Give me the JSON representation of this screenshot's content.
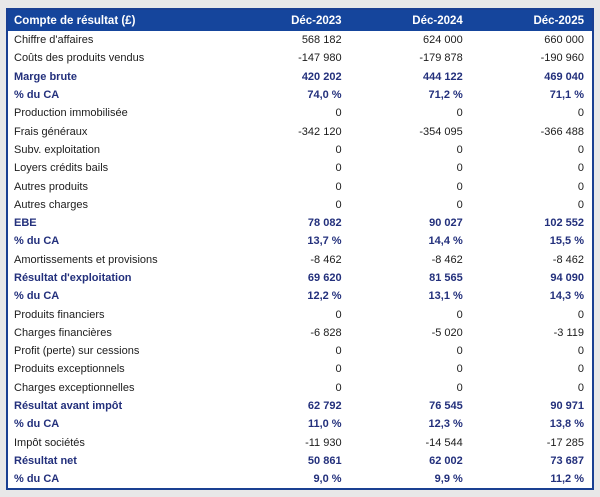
{
  "chart_data": {
    "type": "table",
    "title": "Compte de résultat (£)",
    "columns": [
      "Déc-2023",
      "Déc-2024",
      "Déc-2025"
    ],
    "rows": [
      {
        "label": "Chiffre d'affaires",
        "values": [
          "568 182",
          "624 000",
          "660 000"
        ],
        "bold": false
      },
      {
        "label": "Coûts des produits vendus",
        "values": [
          "-147 980",
          "-179 878",
          "-190 960"
        ],
        "bold": false
      },
      {
        "label": "Marge brute",
        "values": [
          "420 202",
          "444 122",
          "469 040"
        ],
        "bold": true
      },
      {
        "label": "% du CA",
        "values": [
          "74,0 %",
          "71,2 %",
          "71,1 %"
        ],
        "bold": true
      },
      {
        "label": "Production immobilisée",
        "values": [
          "0",
          "0",
          "0"
        ],
        "bold": false
      },
      {
        "label": "Frais généraux",
        "values": [
          "-342 120",
          "-354 095",
          "-366 488"
        ],
        "bold": false
      },
      {
        "label": "Subv. exploitation",
        "values": [
          "0",
          "0",
          "0"
        ],
        "bold": false
      },
      {
        "label": "Loyers crédits bails",
        "values": [
          "0",
          "0",
          "0"
        ],
        "bold": false
      },
      {
        "label": "Autres produits",
        "values": [
          "0",
          "0",
          "0"
        ],
        "bold": false
      },
      {
        "label": "Autres charges",
        "values": [
          "0",
          "0",
          "0"
        ],
        "bold": false
      },
      {
        "label": "EBE",
        "values": [
          "78 082",
          "90 027",
          "102 552"
        ],
        "bold": true
      },
      {
        "label": "% du CA",
        "values": [
          "13,7 %",
          "14,4 %",
          "15,5 %"
        ],
        "bold": true
      },
      {
        "label": "Amortissements et provisions",
        "values": [
          "-8 462",
          "-8 462",
          "-8 462"
        ],
        "bold": false
      },
      {
        "label": "Résultat d'exploitation",
        "values": [
          "69 620",
          "81 565",
          "94 090"
        ],
        "bold": true
      },
      {
        "label": "% du CA",
        "values": [
          "12,2 %",
          "13,1 %",
          "14,3 %"
        ],
        "bold": true
      },
      {
        "label": "Produits financiers",
        "values": [
          "0",
          "0",
          "0"
        ],
        "bold": false
      },
      {
        "label": "Charges financières",
        "values": [
          "-6 828",
          "-5 020",
          "-3 119"
        ],
        "bold": false
      },
      {
        "label": "Profit (perte) sur cessions",
        "values": [
          "0",
          "0",
          "0"
        ],
        "bold": false
      },
      {
        "label": "Produits exceptionnels",
        "values": [
          "0",
          "0",
          "0"
        ],
        "bold": false
      },
      {
        "label": "Charges exceptionnelles",
        "values": [
          "0",
          "0",
          "0"
        ],
        "bold": false
      },
      {
        "label": "Résultat avant impôt",
        "values": [
          "62 792",
          "76 545",
          "90 971"
        ],
        "bold": true
      },
      {
        "label": "% du CA",
        "values": [
          "11,0 %",
          "12,3 %",
          "13,8 %"
        ],
        "bold": true
      },
      {
        "label": "Impôt sociétés",
        "values": [
          "-11 930",
          "-14 544",
          "-17 285"
        ],
        "bold": false
      },
      {
        "label": "Résultat net",
        "values": [
          "50 861",
          "62 002",
          "73 687"
        ],
        "bold": true
      },
      {
        "label": "% du CA",
        "values": [
          "9,0 %",
          "9,9 %",
          "11,2 %"
        ],
        "bold": true
      }
    ]
  },
  "colors": {
    "header_background": "#15459c",
    "header_text": "#ffffff",
    "table_border": "#1a4092",
    "bold_row_text": "#23307c",
    "regular_row_text": "#1c1c1c",
    "page_background": "#e8e8e8",
    "table_background": "#ffffff"
  }
}
